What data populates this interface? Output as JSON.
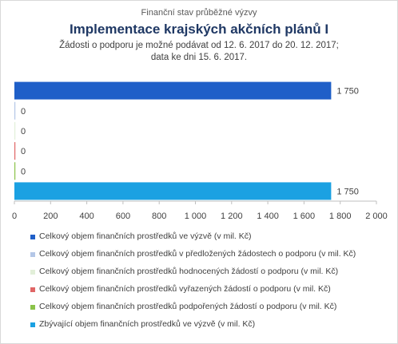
{
  "header": {
    "supertitle": "Finanční stav průběžné výzvy",
    "title": "Implementace krajských akčních plánů I",
    "subtitle_line1": "Žádosti o podporu je možné  podávat od 12. 6. 2017 do 20. 12. 2017;",
    "subtitle_line2": "data ke dni 15. 6. 2017."
  },
  "chart_data": {
    "type": "bar",
    "orientation": "horizontal",
    "xlim": [
      0,
      2000
    ],
    "ticks": [
      0,
      200,
      400,
      600,
      800,
      1000,
      1200,
      1400,
      1600,
      1800,
      2000
    ],
    "tick_labels": [
      "0",
      "200",
      "400",
      "600",
      "800",
      "1 000",
      "1 200",
      "1 400",
      "1 600",
      "1 800",
      "2 000"
    ],
    "grid": false,
    "legend_position": "bottom",
    "series": [
      {
        "name": "Celkový objem finančních prostředků ve výzvě (v mil. Kč)",
        "value": 1750,
        "label": "1 750",
        "color": "#1f5fc8"
      },
      {
        "name": "Celkový objem finančních prostředků v předložených žádostech o podporu (v mil. Kč)",
        "value": 0,
        "label": "0",
        "color": "#b4c7e7"
      },
      {
        "name": "Celkový objem finančních prostředků hodnocených žádostí o podporu (v mil. Kč)",
        "value": 0,
        "label": "0",
        "color": "#e2efd9"
      },
      {
        "name": "Celkový objem finančních prostředků vyřazených žádostí o podporu (v mil. Kč)",
        "value": 0,
        "label": "0",
        "color": "#e06666"
      },
      {
        "name": "Celkový objem finančních prostředků podpořených žádostí o podporu (v mil. Kč)",
        "value": 0,
        "label": "0",
        "color": "#8bc34a"
      },
      {
        "name": "Zbývající objem finančních prostředků ve výzvě (v mil. Kč)",
        "value": 1750,
        "label": "1 750",
        "color": "#1ba1e2"
      }
    ]
  }
}
